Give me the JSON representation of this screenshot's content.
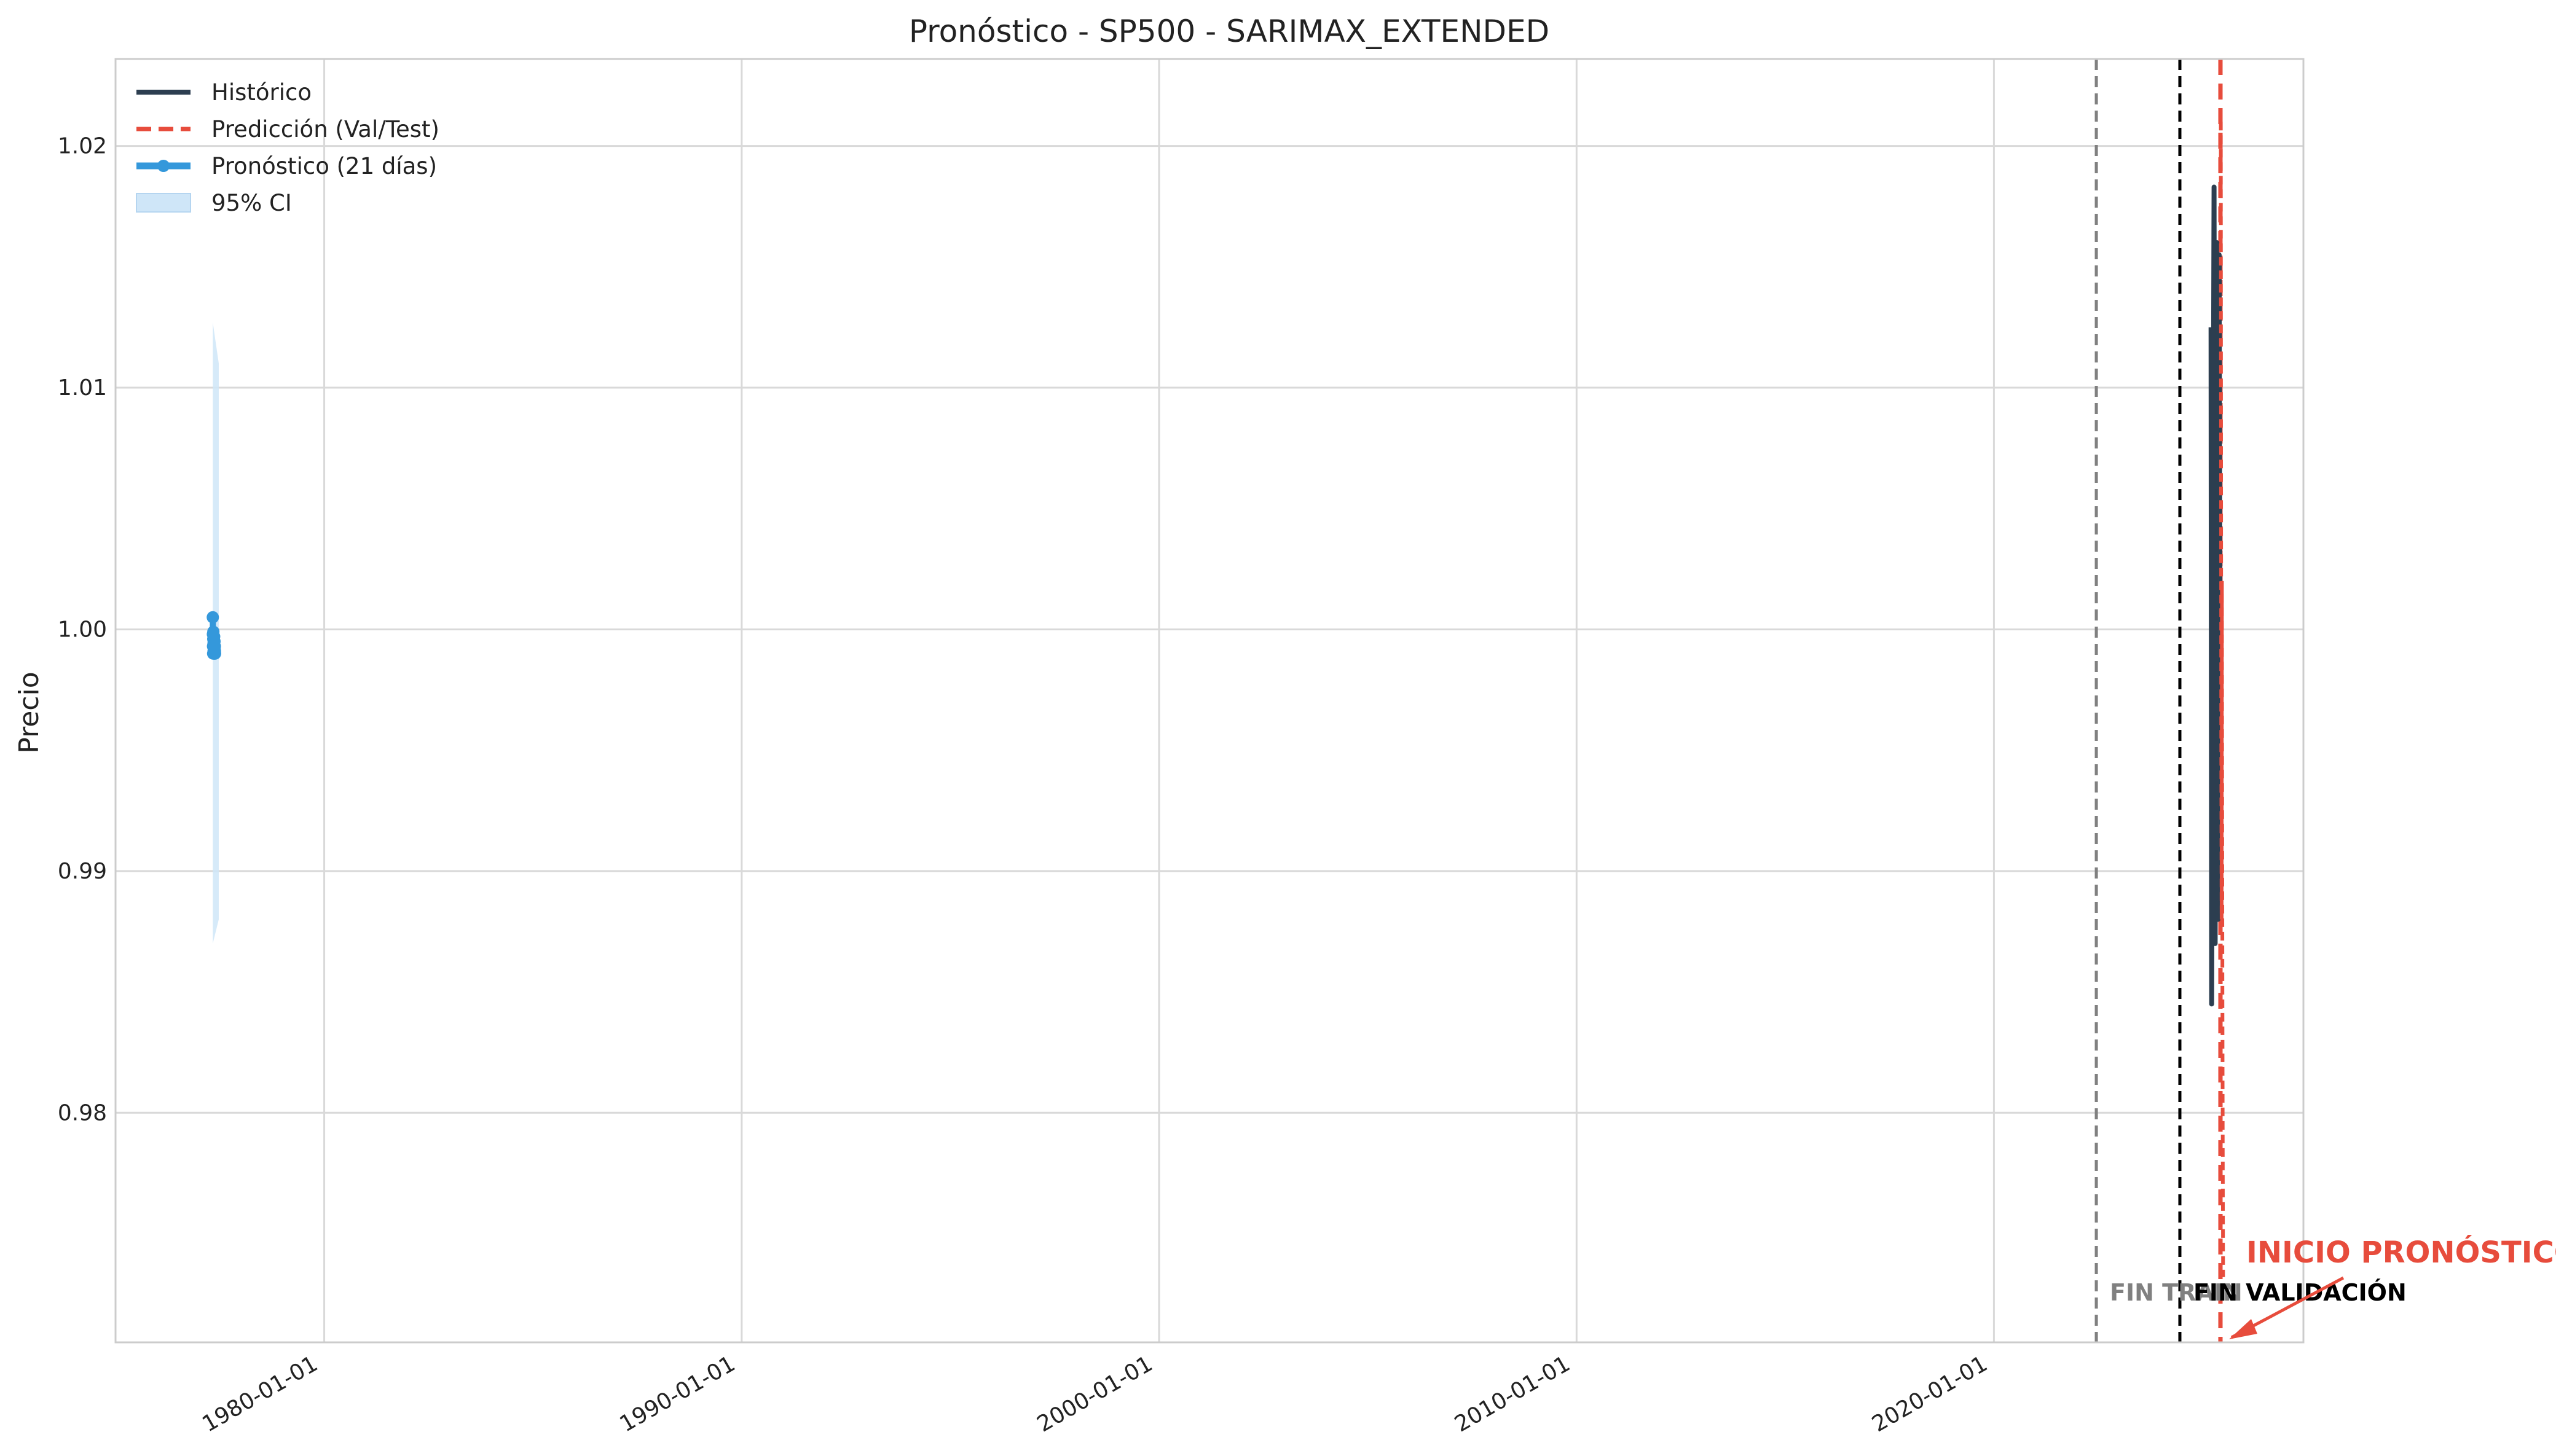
{
  "chart_data": {
    "type": "line",
    "title": "Pronóstico - SP500 - SARIMAX_EXTENDED",
    "xlabel": "",
    "ylabel": "Precio",
    "x_ticks": [
      "1980-01-01",
      "1990-01-01",
      "2000-01-01",
      "2010-01-01",
      "2020-01-01"
    ],
    "y_ticks": [
      0.98,
      0.99,
      1.0,
      1.01,
      1.02
    ],
    "y_tick_labels": [
      "0.98",
      "0.99",
      "1.00",
      "1.01",
      "1.02"
    ],
    "xlim": [
      "1975-01-01",
      "2027-06-01"
    ],
    "ylim": [
      0.9705,
      1.0236
    ],
    "grid": true,
    "legend_position": "top-left",
    "legend": [
      {
        "label": "Histórico",
        "style": "solid-line",
        "color": "#2c3e50"
      },
      {
        "label": "Predicción (Val/Test)",
        "style": "dashed-line",
        "color": "#e74c3c"
      },
      {
        "label": "Pronóstico (21 días)",
        "style": "line-with-markers",
        "color": "#3498db"
      },
      {
        "label": "95% CI",
        "style": "filled-band",
        "color": "#cfe6f8"
      }
    ],
    "series": [
      {
        "name": "Histórico",
        "color": "#2c3e50",
        "x": [
          "2025-03-15",
          "2025-03-20",
          "2025-04-10",
          "2025-04-20",
          "2025-05-05",
          "2025-05-15",
          "2025-05-25",
          "2025-06-05"
        ],
        "y": [
          1.0125,
          0.9845,
          1.0183,
          0.987,
          1.016,
          0.988,
          1.0155,
          0.992
        ]
      },
      {
        "name": "Predicción (Val/Test)",
        "color": "#e74c3c",
        "x": [
          "2025-06-08",
          "2025-06-10",
          "2025-06-12",
          "2025-06-15",
          "2025-06-18",
          "2025-06-22",
          "2025-06-25",
          "2025-06-28"
        ],
        "y": [
          1.021,
          1.01,
          0.996,
          0.988,
          1.002,
          0.985,
          0.979,
          0.9732
        ]
      },
      {
        "name": "Pronóstico (21 días)",
        "color": "#3498db",
        "x": [
          "1977-05-01",
          "1977-05-02",
          "1977-05-03",
          "1977-05-04",
          "1977-05-05",
          "1977-05-06",
          "1977-05-07",
          "1977-05-08",
          "1977-05-09",
          "1977-05-10",
          "1977-05-11",
          "1977-05-12",
          "1977-05-13",
          "1977-05-14",
          "1977-05-15",
          "1977-05-16",
          "1977-05-17",
          "1977-05-18",
          "1977-05-19",
          "1977-05-20",
          "1977-05-21"
        ],
        "y": [
          1.0005,
          0.9998,
          0.9993,
          0.999,
          0.9996,
          0.9999,
          0.9994,
          0.9991,
          0.9995,
          0.9992,
          0.999,
          0.9994,
          0.9997,
          0.9993,
          0.9991,
          0.9995,
          0.9992,
          0.999,
          0.9993,
          0.9991,
          0.999
        ]
      }
    ],
    "confidence_band": {
      "name": "95% CI",
      "color": "#cfe6f8",
      "x_start": "1977-05-01",
      "x_end": "1977-05-21",
      "upper_start": 1.0127,
      "upper_end": 1.011,
      "lower_start": 0.987,
      "lower_end": 0.988
    },
    "vertical_lines": [
      {
        "date": "2022-06-15",
        "color": "#808080",
        "style": "dashed",
        "label": "FIN TRAIN"
      },
      {
        "date": "2024-06-15",
        "color": "#000000",
        "style": "dashed",
        "label": "FIN VALIDACIÓN"
      },
      {
        "date": "2025-06-05",
        "color": "#e74c3c",
        "style": "dashed",
        "label": "INICIO PRONÓSTICO"
      }
    ],
    "annotation": {
      "text": "INICIO PRONÓSTICO",
      "color": "#e74c3c",
      "arrow_to_date": "2025-06-05"
    }
  }
}
